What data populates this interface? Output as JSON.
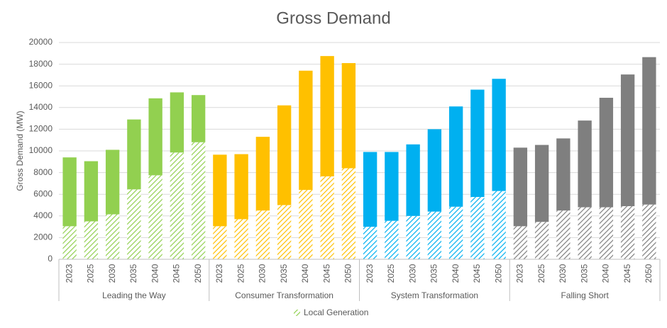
{
  "chart_data": {
    "type": "bar",
    "stacked": true,
    "title": "Gross Demand",
    "y_label": "Gross Demand (MW)",
    "ylim": [
      0,
      20000
    ],
    "yticks": [
      0,
      2000,
      4000,
      6000,
      8000,
      10000,
      12000,
      14000,
      16000,
      18000,
      20000
    ],
    "grid": true,
    "legend": "Local Generation",
    "groups": [
      {
        "name": "Leading the Way",
        "color": "#92d050",
        "categories": [
          "2023",
          "2025",
          "2030",
          "2035",
          "2040",
          "2045",
          "2050"
        ],
        "local_generation": [
          3050,
          3500,
          4150,
          6450,
          7750,
          9850,
          10800
        ],
        "remainder": [
          6350,
          5550,
          5950,
          6450,
          7100,
          5550,
          4350
        ]
      },
      {
        "name": "Consumer Transformation",
        "color": "#ffc000",
        "categories": [
          "2023",
          "2025",
          "2030",
          "2035",
          "2040",
          "2045",
          "2050"
        ],
        "local_generation": [
          3050,
          3700,
          4500,
          5000,
          6400,
          7650,
          8400
        ],
        "remainder": [
          6600,
          6000,
          6800,
          9200,
          11000,
          11100,
          9700
        ]
      },
      {
        "name": "System Transformation",
        "color": "#00b0f0",
        "categories": [
          "2023",
          "2025",
          "2030",
          "2035",
          "2040",
          "2045",
          "2050"
        ],
        "local_generation": [
          3000,
          3550,
          4000,
          4400,
          4850,
          5750,
          6300
        ],
        "remainder": [
          6900,
          6350,
          6600,
          7600,
          9250,
          9900,
          10350
        ]
      },
      {
        "name": "Falling Short",
        "color": "#7f7f7f",
        "categories": [
          "2023",
          "2025",
          "2030",
          "2035",
          "2040",
          "2045",
          "2050"
        ],
        "local_generation": [
          3050,
          3450,
          4500,
          4800,
          4800,
          4900,
          5050
        ],
        "remainder": [
          7250,
          7100,
          6650,
          8000,
          10100,
          12150,
          13600
        ]
      }
    ]
  }
}
